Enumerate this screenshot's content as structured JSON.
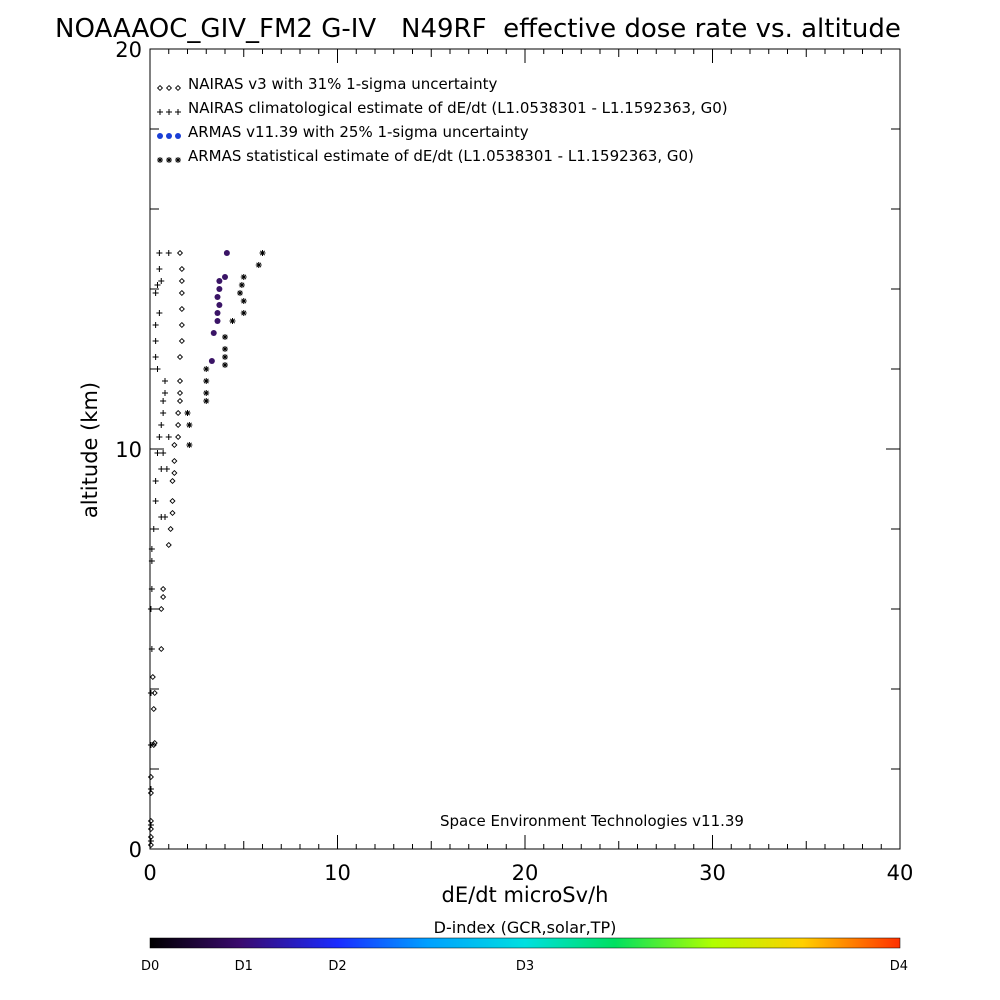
{
  "chart_data": {
    "type": "scatter",
    "title": "NOAAAOC_GIV_FM2 G-IV   N49RF  effective dose rate vs. altitude",
    "xlabel": "dE/dt microSv/h",
    "ylabel": "altitude (km)",
    "xlim": [
      0,
      40
    ],
    "ylim": [
      0,
      20
    ],
    "x_ticks": [
      "0",
      "10",
      "20",
      "30",
      "40"
    ],
    "y_ticks": [
      "0",
      "10",
      "20"
    ],
    "legend_position": "top-left",
    "legend": [
      {
        "label": "NAIRAS v3 with 31% 1-sigma uncertainty",
        "marker": "diamond",
        "color": "#000000"
      },
      {
        "label": "NAIRAS climatological estimate of dE/dt (L1.0538301 - L1.1592363, G0)",
        "marker": "plus",
        "color": "#000000"
      },
      {
        "label": "ARMAS v11.39 with 25% 1-sigma uncertainty",
        "marker": "dot",
        "color": "#1a3fd6"
      },
      {
        "label": "ARMAS statistical estimate of dE/dt (L1.0538301 - L1.1592363, G0)",
        "marker": "asterisk",
        "color": "#000000"
      }
    ],
    "annotation": "Space Environment Technologies v11.39",
    "series": [
      {
        "name": "NAIRAS v3 with 31% 1-sigma uncertainty",
        "marker": "diamond",
        "color": "#000000",
        "points": [
          [
            0.05,
            0.1
          ],
          [
            0.05,
            0.3
          ],
          [
            0.05,
            0.5
          ],
          [
            0.05,
            0.7
          ],
          [
            0.05,
            1.4
          ],
          [
            0.05,
            1.8
          ],
          [
            0.2,
            2.6
          ],
          [
            0.25,
            2.65
          ],
          [
            0.2,
            3.5
          ],
          [
            0.25,
            3.9
          ],
          [
            0.15,
            4.3
          ],
          [
            0.6,
            5.0
          ],
          [
            0.6,
            6.0
          ],
          [
            0.7,
            6.3
          ],
          [
            0.7,
            6.5
          ],
          [
            1.0,
            7.6
          ],
          [
            1.1,
            8.0
          ],
          [
            1.2,
            8.4
          ],
          [
            1.2,
            8.7
          ],
          [
            1.2,
            9.2
          ],
          [
            1.3,
            9.4
          ],
          [
            1.3,
            9.7
          ],
          [
            1.3,
            10.1
          ],
          [
            1.5,
            10.3
          ],
          [
            1.5,
            10.6
          ],
          [
            1.5,
            10.9
          ],
          [
            1.6,
            11.2
          ],
          [
            1.6,
            11.4
          ],
          [
            1.6,
            11.7
          ],
          [
            1.6,
            12.3
          ],
          [
            1.7,
            12.7
          ],
          [
            1.7,
            13.1
          ],
          [
            1.7,
            13.5
          ],
          [
            1.7,
            13.9
          ],
          [
            1.7,
            14.2
          ],
          [
            1.7,
            14.5
          ],
          [
            1.6,
            14.9
          ]
        ]
      },
      {
        "name": "NAIRAS climatological estimate of dE/dt (L1.0538301 - L1.1592363, G0)",
        "marker": "plus",
        "color": "#000000",
        "points": [
          [
            0.05,
            0.2
          ],
          [
            0.05,
            0.6
          ],
          [
            0.05,
            1.5
          ],
          [
            0.05,
            2.6
          ],
          [
            0.05,
            3.9
          ],
          [
            0.1,
            5.0
          ],
          [
            0.05,
            6.0
          ],
          [
            0.1,
            6.5
          ],
          [
            0.1,
            7.2
          ],
          [
            0.1,
            7.5
          ],
          [
            0.2,
            8.0
          ],
          [
            0.6,
            8.3
          ],
          [
            0.8,
            8.3
          ],
          [
            0.3,
            8.7
          ],
          [
            0.3,
            9.2
          ],
          [
            0.6,
            9.5
          ],
          [
            0.9,
            9.5
          ],
          [
            0.4,
            9.9
          ],
          [
            0.7,
            9.9
          ],
          [
            0.5,
            10.3
          ],
          [
            1.0,
            10.3
          ],
          [
            0.6,
            10.6
          ],
          [
            0.7,
            10.9
          ],
          [
            0.7,
            11.2
          ],
          [
            0.8,
            11.4
          ],
          [
            0.8,
            11.7
          ],
          [
            0.4,
            12.0
          ],
          [
            0.3,
            12.3
          ],
          [
            0.3,
            12.7
          ],
          [
            0.3,
            13.1
          ],
          [
            0.5,
            13.4
          ],
          [
            0.3,
            13.9
          ],
          [
            0.4,
            14.1
          ],
          [
            0.6,
            14.2
          ],
          [
            0.5,
            14.5
          ],
          [
            0.5,
            14.9
          ],
          [
            1.0,
            14.9
          ]
        ]
      },
      {
        "name": "ARMAS v11.39 with 25% 1-sigma uncertainty",
        "marker": "dot",
        "color": "#3a1466",
        "points": [
          [
            3.3,
            12.2
          ],
          [
            3.4,
            12.9
          ],
          [
            3.6,
            13.2
          ],
          [
            3.6,
            13.4
          ],
          [
            3.7,
            13.6
          ],
          [
            3.6,
            13.8
          ],
          [
            3.7,
            14.0
          ],
          [
            3.7,
            14.2
          ],
          [
            4.0,
            14.3
          ],
          [
            4.1,
            14.9
          ]
        ]
      },
      {
        "name": "ARMAS statistical estimate of dE/dt (L1.0538301 - L1.1592363, G0)",
        "marker": "asterisk",
        "color": "#000000",
        "points": [
          [
            2.1,
            10.1
          ],
          [
            2.1,
            10.6
          ],
          [
            2.0,
            10.9
          ],
          [
            3.0,
            11.2
          ],
          [
            3.0,
            11.4
          ],
          [
            3.0,
            11.7
          ],
          [
            3.0,
            12.0
          ],
          [
            4.0,
            12.1
          ],
          [
            4.0,
            12.3
          ],
          [
            4.0,
            12.5
          ],
          [
            4.0,
            12.8
          ],
          [
            4.4,
            13.2
          ],
          [
            5.0,
            13.4
          ],
          [
            5.0,
            13.7
          ],
          [
            4.8,
            13.9
          ],
          [
            4.9,
            14.1
          ],
          [
            5.0,
            14.3
          ],
          [
            5.8,
            14.6
          ],
          [
            6.0,
            14.9
          ]
        ]
      }
    ]
  },
  "colorbar": {
    "title": "D-index (GCR,solar,TP)",
    "labels": [
      "D0",
      "D1",
      "D2",
      "D3",
      "D4"
    ],
    "label_positions": [
      0,
      0.125,
      0.25,
      0.5,
      1
    ]
  }
}
